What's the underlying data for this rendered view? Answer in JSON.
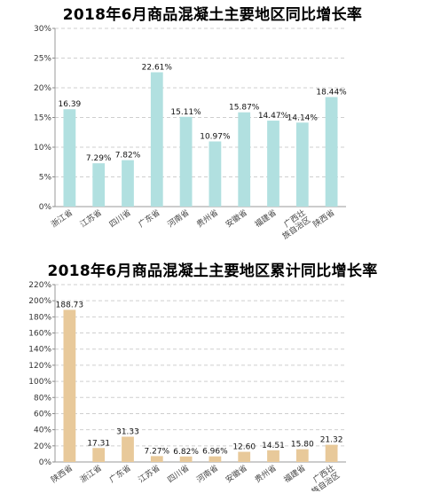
{
  "chart_data": [
    {
      "type": "bar",
      "title": "2018年6月商品混凝土主要地区同比增长率",
      "categories": [
        "浙江省",
        "江苏省",
        "四川省",
        "广东省",
        "河南省",
        "贵州省",
        "安徽省",
        "福建省",
        "广西壮族自治区",
        "陕西省"
      ],
      "values": [
        16.39,
        7.29,
        7.82,
        22.61,
        15.11,
        10.97,
        15.87,
        14.47,
        14.14,
        18.44
      ],
      "value_labels": [
        "16.39",
        "7.29%",
        "7.82%",
        "22.61%",
        "15.11%",
        "10.97%",
        "15.87%",
        "14.47%",
        "14.14%",
        "18.44%"
      ],
      "ylim": [
        0,
        30
      ],
      "yticks": [
        0,
        5,
        10,
        15,
        20,
        25,
        30
      ],
      "ytick_labels": [
        "0%",
        "5%",
        "10%",
        "15%",
        "20%",
        "25%",
        "30%"
      ],
      "bar_color": "#b1e0e0",
      "grid": true
    },
    {
      "type": "bar",
      "title": "2018年6月商品混凝土主要地区累计同比增长率",
      "categories": [
        "陕西省",
        "浙江省",
        "广东省",
        "江苏省",
        "四川省",
        "河南省",
        "安徽省",
        "贵州省",
        "福建省",
        "广西壮族自治区"
      ],
      "values": [
        188.73,
        17.31,
        31.33,
        7.27,
        6.82,
        6.96,
        12.6,
        14.51,
        15.8,
        21.32
      ],
      "value_labels": [
        "188.73",
        "17.31",
        "31.33",
        "7.27%",
        "6.82%",
        "6.96%",
        "12.60",
        "14.51",
        "15.80",
        "21.32"
      ],
      "ylim": [
        0,
        220
      ],
      "yticks": [
        0,
        20,
        40,
        60,
        80,
        100,
        120,
        140,
        160,
        180,
        200,
        220
      ],
      "ytick_labels": [
        "0%",
        "20%",
        "40%",
        "60%",
        "80%",
        "100%",
        "120%",
        "140%",
        "160%",
        "180%",
        "200%",
        "220%"
      ],
      "bar_color": "#e8c99a",
      "grid": true
    }
  ]
}
